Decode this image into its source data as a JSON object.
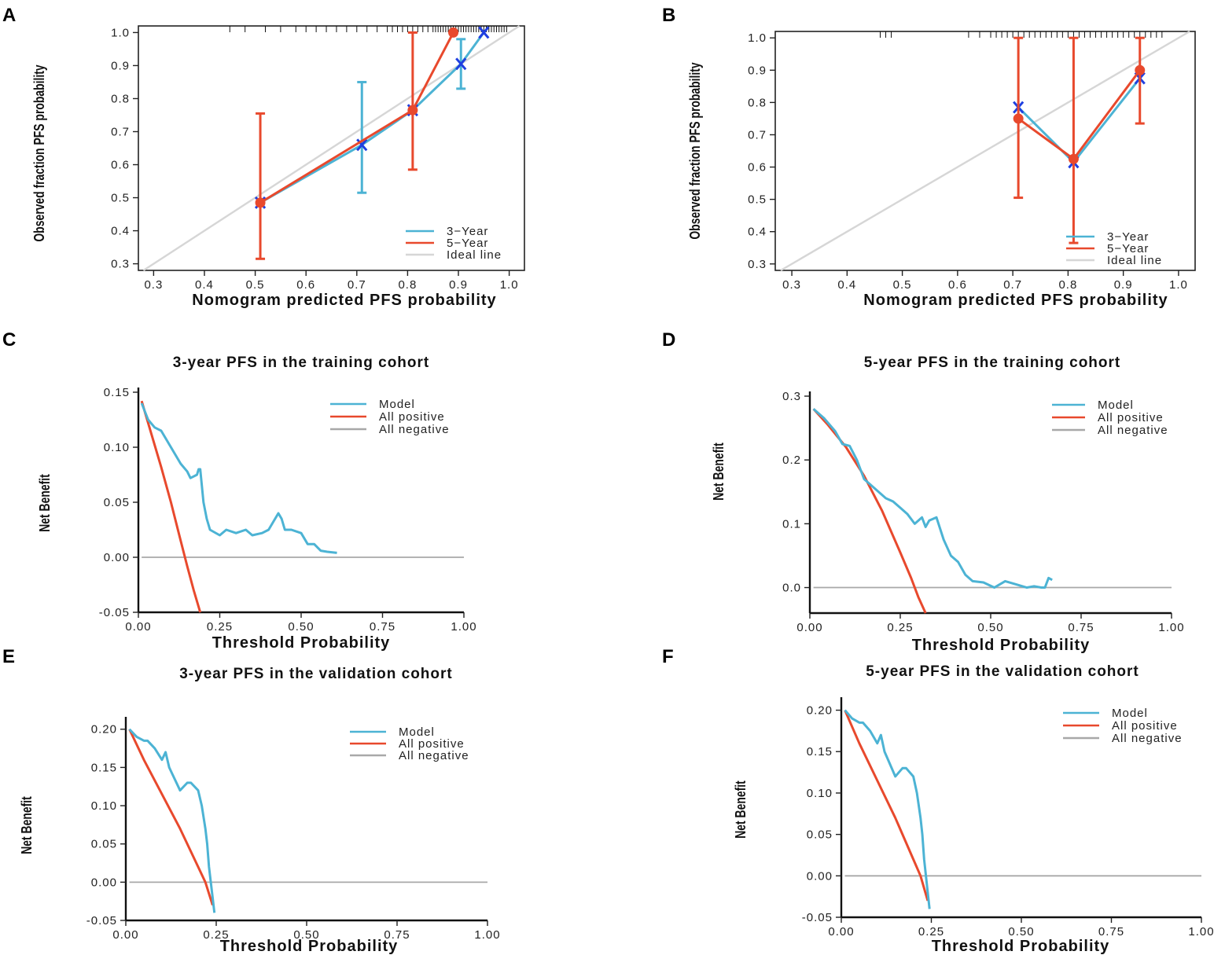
{
  "colors": {
    "model": "#4cb3d4",
    "all_positive": "#e8492d",
    "all_negative": "#a8a8a8",
    "ideal": "#d6d6d6",
    "marker": "#1f3fe0"
  },
  "chart_data": [
    {
      "panel": "A",
      "type": "calibration",
      "title": "",
      "xlabel": "Nomogram predicted PFS probability",
      "ylabel": "Observed fraction PFS probability",
      "xlim": [
        0.27,
        1.03
      ],
      "ylim": [
        0.28,
        1.02
      ],
      "xticks": [
        "0.3",
        "0.4",
        "0.5",
        "0.6",
        "0.7",
        "0.8",
        "0.9",
        "1.0"
      ],
      "yticks": [
        "0.3",
        "0.4",
        "0.5",
        "0.6",
        "0.7",
        "0.8",
        "0.9",
        "1.0"
      ],
      "legend": [
        "3−Year",
        "5−Year",
        "Ideal line"
      ],
      "series": [
        {
          "name": "3-Year",
          "x": [
            0.51,
            0.71,
            0.81,
            0.905,
            0.95
          ],
          "y": [
            0.485,
            0.66,
            0.765,
            0.905,
            1.0
          ],
          "lower": [
            0.485,
            0.515,
            0.765,
            0.83,
            1.0
          ],
          "upper": [
            0.485,
            0.85,
            0.765,
            0.98,
            1.0
          ]
        },
        {
          "name": "5-Year",
          "x": [
            0.51,
            0.81,
            0.89
          ],
          "y": [
            0.485,
            0.765,
            1.0
          ],
          "lower": [
            0.315,
            0.585,
            1.0
          ],
          "upper": [
            0.755,
            1.0,
            1.0
          ]
        }
      ],
      "rug": [
        0.45,
        0.48,
        0.52,
        0.55,
        0.58,
        0.6,
        0.62,
        0.64,
        0.66,
        0.68,
        0.7,
        0.72,
        0.74,
        0.76,
        0.77,
        0.78,
        0.79,
        0.8,
        0.81,
        0.82,
        0.83,
        0.84,
        0.85,
        0.855,
        0.86,
        0.865,
        0.87,
        0.875,
        0.88,
        0.885,
        0.89,
        0.895,
        0.9,
        0.905,
        0.91,
        0.915,
        0.92,
        0.925,
        0.93,
        0.935,
        0.94,
        0.945,
        0.95,
        0.955,
        0.96,
        0.965,
        0.97,
        0.975,
        0.98,
        0.985,
        0.99,
        0.995
      ]
    },
    {
      "panel": "B",
      "type": "calibration",
      "title": "",
      "xlabel": "Nomogram predicted PFS probability",
      "ylabel": "Observed fraction PFS probability",
      "xlim": [
        0.27,
        1.03
      ],
      "ylim": [
        0.28,
        1.02
      ],
      "xticks": [
        "0.3",
        "0.4",
        "0.5",
        "0.6",
        "0.7",
        "0.8",
        "0.9",
        "1.0"
      ],
      "yticks": [
        "0.3",
        "0.4",
        "0.5",
        "0.6",
        "0.7",
        "0.8",
        "0.9",
        "1.0"
      ],
      "legend": [
        "3−Year",
        "5−Year",
        "Ideal line"
      ],
      "series": [
        {
          "name": "3-Year",
          "x": [
            0.71,
            0.81,
            0.93
          ],
          "y": [
            0.785,
            0.615,
            0.875
          ],
          "lower": [
            0.785,
            0.615,
            0.875
          ],
          "upper": [
            0.785,
            0.615,
            0.875
          ]
        },
        {
          "name": "5-Year",
          "x": [
            0.71,
            0.81,
            0.93
          ],
          "y": [
            0.75,
            0.625,
            0.9
          ],
          "lower": [
            0.505,
            0.365,
            0.735
          ],
          "upper": [
            1.0,
            1.0,
            1.0
          ]
        }
      ],
      "rug": [
        0.46,
        0.47,
        0.48,
        0.62,
        0.64,
        0.66,
        0.67,
        0.68,
        0.69,
        0.7,
        0.71,
        0.72,
        0.73,
        0.74,
        0.75,
        0.76,
        0.77,
        0.78,
        0.79,
        0.8,
        0.81,
        0.82,
        0.83,
        0.84,
        0.85,
        0.86,
        0.87,
        0.88,
        0.89,
        0.9,
        0.91,
        0.92,
        0.93,
        0.94,
        0.95,
        0.96,
        0.97
      ]
    },
    {
      "panel": "C",
      "type": "line",
      "title": "3-year PFS in the training cohort",
      "xlabel": "Threshold Probability",
      "ylabel": "Net Benefit",
      "xlim": [
        0,
        1
      ],
      "ylim": [
        -0.05,
        0.15
      ],
      "xticks": [
        "0.00",
        "0.25",
        "0.50",
        "0.75",
        "1.00"
      ],
      "yticks": [
        "-0.05",
        "0.00",
        "0.05",
        "0.10",
        "0.15"
      ],
      "legend": [
        "Model",
        "All positive",
        "All negative"
      ],
      "series": [
        {
          "name": "Model",
          "x": [
            0.01,
            0.03,
            0.05,
            0.07,
            0.08,
            0.1,
            0.12,
            0.13,
            0.15,
            0.16,
            0.18,
            0.185,
            0.19,
            0.2,
            0.21,
            0.22,
            0.25,
            0.27,
            0.3,
            0.33,
            0.35,
            0.38,
            0.4,
            0.42,
            0.43,
            0.44,
            0.45,
            0.47,
            0.5,
            0.52,
            0.54,
            0.56,
            0.58,
            0.61
          ],
          "y": [
            0.14,
            0.125,
            0.118,
            0.115,
            0.11,
            0.1,
            0.09,
            0.085,
            0.078,
            0.072,
            0.075,
            0.08,
            0.08,
            0.05,
            0.035,
            0.025,
            0.02,
            0.025,
            0.022,
            0.025,
            0.02,
            0.022,
            0.025,
            0.035,
            0.04,
            0.035,
            0.025,
            0.025,
            0.022,
            0.012,
            0.012,
            0.006,
            0.005,
            0.004
          ]
        },
        {
          "name": "All positive",
          "x": [
            0.01,
            0.04,
            0.07,
            0.1,
            0.13,
            0.15,
            0.17,
            0.19
          ],
          "y": [
            0.142,
            0.112,
            0.082,
            0.05,
            0.015,
            -0.008,
            -0.03,
            -0.05
          ]
        },
        {
          "name": "All negative",
          "x": [
            0.01,
            1.0
          ],
          "y": [
            0,
            0
          ]
        }
      ]
    },
    {
      "panel": "D",
      "type": "line",
      "title": "5-year PFS in the training cohort",
      "xlabel": "Threshold Probability",
      "ylabel": "Net Benefit",
      "xlim": [
        0,
        1
      ],
      "ylim": [
        -0.04,
        0.3
      ],
      "xticks": [
        "0.00",
        "0.25",
        "0.50",
        "0.75",
        "1.00"
      ],
      "yticks": [
        "0.0",
        "0.1",
        "0.2",
        "0.3"
      ],
      "legend": [
        "Model",
        "All positive",
        "All negative"
      ],
      "series": [
        {
          "name": "Model",
          "x": [
            0.01,
            0.04,
            0.07,
            0.09,
            0.11,
            0.13,
            0.15,
            0.17,
            0.19,
            0.21,
            0.23,
            0.25,
            0.27,
            0.29,
            0.31,
            0.32,
            0.33,
            0.35,
            0.37,
            0.39,
            0.41,
            0.43,
            0.45,
            0.48,
            0.51,
            0.54,
            0.57,
            0.6,
            0.62,
            0.64,
            0.65,
            0.66,
            0.67
          ],
          "y": [
            0.28,
            0.265,
            0.245,
            0.225,
            0.222,
            0.2,
            0.17,
            0.16,
            0.15,
            0.14,
            0.135,
            0.125,
            0.115,
            0.1,
            0.11,
            0.095,
            0.105,
            0.11,
            0.075,
            0.05,
            0.04,
            0.02,
            0.01,
            0.008,
            0.0,
            0.01,
            0.005,
            0.0,
            0.002,
            0.0,
            0.0,
            0.015,
            0.012
          ]
        },
        {
          "name": "All positive",
          "x": [
            0.01,
            0.05,
            0.1,
            0.15,
            0.2,
            0.25,
            0.28,
            0.3,
            0.32
          ],
          "y": [
            0.28,
            0.255,
            0.22,
            0.175,
            0.12,
            0.055,
            0.015,
            -0.015,
            -0.04
          ]
        },
        {
          "name": "All negative",
          "x": [
            0.01,
            1.0
          ],
          "y": [
            0,
            0
          ]
        }
      ]
    },
    {
      "panel": "E",
      "type": "line",
      "title": "3-year PFS in the validation cohort",
      "xlabel": "Threshold Probability",
      "ylabel": "Net Benefit",
      "xlim": [
        0,
        1
      ],
      "ylim": [
        -0.05,
        0.21
      ],
      "xticks": [
        "0.00",
        "0.25",
        "0.50",
        "0.75",
        "1.00"
      ],
      "yticks": [
        "-0.05",
        "0.00",
        "0.05",
        "0.10",
        "0.15",
        "0.20"
      ],
      "legend": [
        "Model",
        "All positive",
        "All negative"
      ],
      "series": [
        {
          "name": "Model",
          "x": [
            0.01,
            0.03,
            0.05,
            0.06,
            0.08,
            0.1,
            0.11,
            0.12,
            0.13,
            0.15,
            0.17,
            0.18,
            0.2,
            0.21,
            0.22,
            0.225,
            0.23,
            0.235,
            0.24,
            0.245
          ],
          "y": [
            0.2,
            0.19,
            0.185,
            0.185,
            0.175,
            0.16,
            0.17,
            0.15,
            0.14,
            0.12,
            0.13,
            0.13,
            0.12,
            0.1,
            0.07,
            0.05,
            0.02,
            0.0,
            -0.02,
            -0.04
          ]
        },
        {
          "name": "All positive",
          "x": [
            0.01,
            0.05,
            0.1,
            0.15,
            0.2,
            0.22,
            0.24
          ],
          "y": [
            0.2,
            0.16,
            0.115,
            0.07,
            0.02,
            0.0,
            -0.03
          ]
        },
        {
          "name": "All negative",
          "x": [
            0.01,
            1.0
          ],
          "y": [
            0,
            0
          ]
        }
      ]
    },
    {
      "panel": "F",
      "type": "line",
      "title": "5-year PFS in the validation cohort",
      "xlabel": "Threshold Probability",
      "ylabel": "Net Benefit",
      "xlim": [
        0,
        1
      ],
      "ylim": [
        -0.05,
        0.21
      ],
      "xticks": [
        "0.00",
        "0.25",
        "0.50",
        "0.75",
        "1.00"
      ],
      "yticks": [
        "-0.05",
        "0.00",
        "0.05",
        "0.10",
        "0.15",
        "0.20"
      ],
      "legend": [
        "Model",
        "All positive",
        "All negative"
      ],
      "series": [
        {
          "name": "Model",
          "x": [
            0.01,
            0.03,
            0.05,
            0.06,
            0.08,
            0.1,
            0.11,
            0.12,
            0.13,
            0.15,
            0.17,
            0.18,
            0.2,
            0.21,
            0.22,
            0.225,
            0.23,
            0.235,
            0.24,
            0.245
          ],
          "y": [
            0.2,
            0.19,
            0.185,
            0.185,
            0.175,
            0.16,
            0.17,
            0.15,
            0.14,
            0.12,
            0.13,
            0.13,
            0.12,
            0.1,
            0.07,
            0.05,
            0.02,
            0.0,
            -0.02,
            -0.04
          ]
        },
        {
          "name": "All positive",
          "x": [
            0.01,
            0.05,
            0.1,
            0.15,
            0.2,
            0.22,
            0.24
          ],
          "y": [
            0.2,
            0.16,
            0.115,
            0.07,
            0.02,
            0.0,
            -0.03
          ]
        },
        {
          "name": "All negative",
          "x": [
            0.01,
            1.0
          ],
          "y": [
            0,
            0
          ]
        }
      ]
    }
  ]
}
